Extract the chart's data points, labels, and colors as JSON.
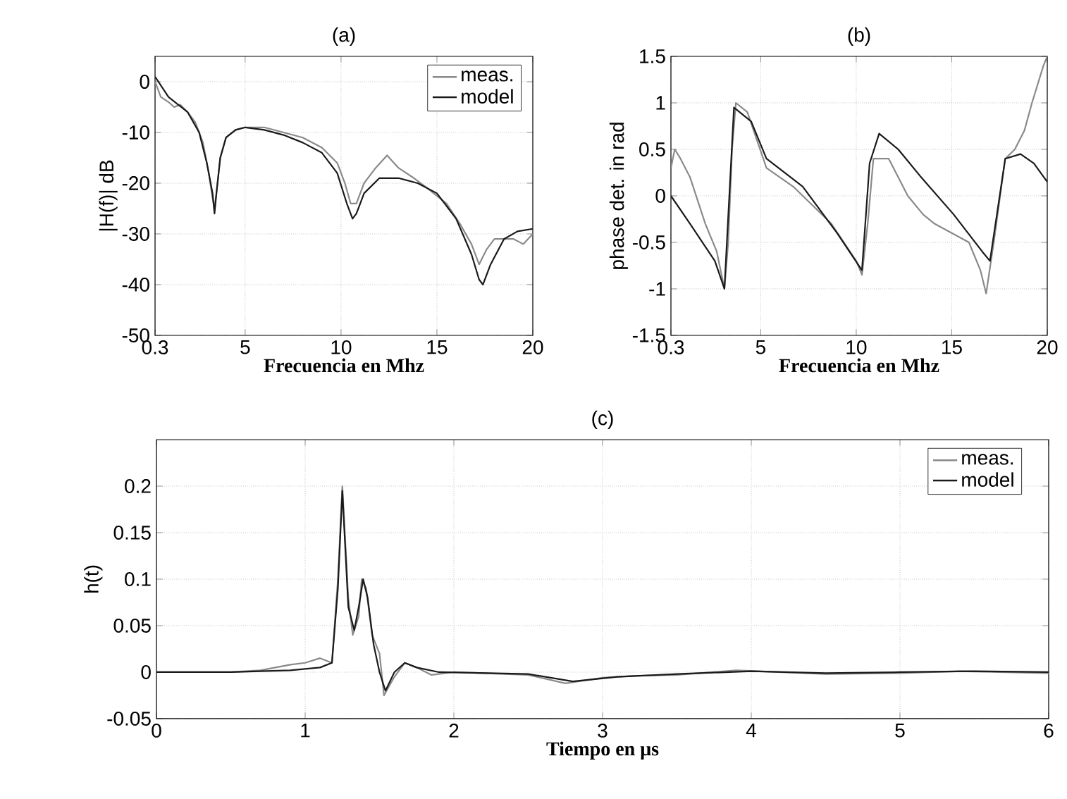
{
  "chart_data": [
    {
      "type": "line",
      "title": "(a)",
      "xlabel": "Frecuencia en Mhz",
      "ylabel": "|H(f)|   dB",
      "xlim": [
        0.3,
        20
      ],
      "ylim": [
        -50,
        5
      ],
      "xticks": [
        0.3,
        5,
        10,
        15,
        20
      ],
      "yticks": [
        -50,
        -40,
        -30,
        -20,
        -10,
        0
      ],
      "grid": true,
      "legend": "top right",
      "line_style": "solid",
      "series": [
        {
          "name": "meas.",
          "color": "#8a8a8a",
          "x": [
            0.3,
            0.6,
            1.0,
            1.3,
            1.6,
            2.0,
            2.4,
            2.8,
            3.1,
            3.3,
            3.4,
            3.5,
            3.7,
            4.0,
            4.5,
            5.0,
            6.0,
            7.0,
            8.0,
            9.0,
            9.8,
            10.2,
            10.5,
            10.8,
            11.2,
            11.8,
            12.4,
            13.0,
            13.8,
            14.5,
            15.5,
            16.2,
            16.8,
            17.2,
            17.6,
            18.0,
            18.5,
            19.0,
            19.5,
            20.0
          ],
          "values": [
            0,
            -3,
            -4,
            -5,
            -4.5,
            -6,
            -8,
            -12,
            -18,
            -23,
            -25,
            -22,
            -15,
            -11,
            -9.5,
            -9,
            -9,
            -10,
            -11,
            -13,
            -16,
            -20,
            -24,
            -24,
            -20,
            -17,
            -14.5,
            -17,
            -19,
            -21,
            -24,
            -28,
            -32,
            -36,
            -33,
            -31,
            -31,
            -31,
            -32,
            -30
          ]
        },
        {
          "name": "model",
          "color": "#1a1a1a",
          "x": [
            0.3,
            1.0,
            2.0,
            2.6,
            3.0,
            3.3,
            3.4,
            3.5,
            3.7,
            4.0,
            4.5,
            5.0,
            6.0,
            7.0,
            8.0,
            9.0,
            9.8,
            10.3,
            10.6,
            10.8,
            11.2,
            12.0,
            13.0,
            14.0,
            15.0,
            16.0,
            16.8,
            17.2,
            17.4,
            17.8,
            18.5,
            19.2,
            20.0
          ],
          "values": [
            1,
            -3,
            -6,
            -10,
            -16,
            -22,
            -26,
            -22,
            -15,
            -11,
            -9.5,
            -9,
            -9.5,
            -10.5,
            -12,
            -14,
            -18,
            -24,
            -27,
            -26,
            -22,
            -19,
            -19,
            -20,
            -22,
            -27,
            -34,
            -39,
            -40,
            -36,
            -31,
            -29.5,
            -29
          ]
        }
      ]
    },
    {
      "type": "line",
      "title": "(b)",
      "xlabel": "Frecuencia en Mhz",
      "ylabel": "phase det. in rad",
      "xlim": [
        0.3,
        20
      ],
      "ylim": [
        -1.5,
        1.5
      ],
      "xticks": [
        0.3,
        5,
        10,
        15,
        20
      ],
      "yticks": [
        -1.5,
        -1,
        -0.5,
        0,
        0.5,
        1,
        1.5
      ],
      "grid": true,
      "line_style": "solid",
      "series": [
        {
          "color": "#8a8a8a",
          "x": [
            0.3,
            0.5,
            0.8,
            1.3,
            2.1,
            2.7,
            3.1,
            3.3,
            3.5,
            3.7,
            4.3,
            5.3,
            6.7,
            8.7,
            10.0,
            10.3,
            10.6,
            10.9,
            11.7,
            12.7,
            13.5,
            14.1,
            15.0,
            15.9,
            16.5,
            16.8,
            17.2,
            17.8,
            18.3,
            18.8,
            19.2,
            19.8,
            20.0
          ],
          "values": [
            0.3,
            0.5,
            0.4,
            0.2,
            -0.3,
            -0.6,
            -1.0,
            -0.5,
            0.5,
            1.0,
            0.9,
            0.3,
            0.1,
            -0.3,
            -0.7,
            -0.85,
            -0.3,
            0.4,
            0.4,
            0.0,
            -0.2,
            -0.3,
            -0.4,
            -0.5,
            -0.8,
            -1.05,
            -0.5,
            0.4,
            0.5,
            0.7,
            1.0,
            1.4,
            1.5
          ]
        },
        {
          "color": "#1a1a1a",
          "x": [
            0.3,
            1.3,
            2.6,
            3.1,
            3.6,
            4.5,
            5.3,
            7.2,
            9.0,
            10.3,
            10.7,
            11.2,
            12.2,
            13.4,
            15.1,
            16.6,
            17.0,
            17.8,
            18.6,
            19.3,
            20.0
          ],
          "values": [
            0.0,
            -0.3,
            -0.7,
            -1.0,
            0.95,
            0.8,
            0.4,
            0.1,
            -0.4,
            -0.8,
            0.35,
            0.67,
            0.5,
            0.2,
            -0.2,
            -0.6,
            -0.7,
            0.4,
            0.45,
            0.35,
            0.15
          ]
        }
      ]
    },
    {
      "type": "line",
      "title": "(c)",
      "xlabel": "Tiempo en μs",
      "ylabel": "h(t)",
      "xlim": [
        0,
        6
      ],
      "ylim": [
        -0.05,
        0.25
      ],
      "xticks": [
        0,
        1,
        2,
        3,
        4,
        5,
        6
      ],
      "yticks": [
        -0.05,
        0,
        0.05,
        0.1,
        0.15,
        0.2
      ],
      "grid": true,
      "legend": "top right",
      "line_style": "solid",
      "series": [
        {
          "name": "meas.",
          "color": "#8a8a8a",
          "x": [
            0,
            0.5,
            0.7,
            0.9,
            1.0,
            1.1,
            1.18,
            1.22,
            1.25,
            1.29,
            1.32,
            1.36,
            1.38,
            1.41,
            1.45,
            1.5,
            1.53,
            1.6,
            1.67,
            1.75,
            1.85,
            2.0,
            2.5,
            2.75,
            3.0,
            3.2,
            3.5,
            3.9,
            4.5,
            5.0,
            5.4,
            6.0
          ],
          "values": [
            0,
            0,
            0.002,
            0.008,
            0.01,
            0.015,
            0.01,
            0.1,
            0.2,
            0.08,
            0.04,
            0.06,
            0.1,
            0.09,
            0.04,
            0.02,
            -0.025,
            -0.005,
            0.01,
            0.005,
            -0.003,
            0,
            -0.003,
            -0.012,
            -0.006,
            -0.004,
            -0.003,
            0.002,
            -0.002,
            -0.001,
            0.001,
            -0.001
          ]
        },
        {
          "name": "model",
          "color": "#1a1a1a",
          "x": [
            0,
            0.5,
            0.9,
            1.1,
            1.18,
            1.22,
            1.25,
            1.29,
            1.33,
            1.36,
            1.39,
            1.42,
            1.46,
            1.5,
            1.54,
            1.6,
            1.67,
            1.75,
            1.9,
            2.5,
            2.8,
            3.1,
            3.5,
            4.0,
            4.5,
            5.0,
            5.5,
            6.0
          ],
          "values": [
            0,
            0,
            0.002,
            0.005,
            0.01,
            0.09,
            0.195,
            0.07,
            0.045,
            0.07,
            0.1,
            0.08,
            0.03,
            0.0,
            -0.02,
            0.0,
            0.01,
            0.005,
            0,
            -0.002,
            -0.01,
            -0.005,
            -0.002,
            0.001,
            -0.001,
            0,
            0.001,
            0
          ]
        }
      ]
    }
  ]
}
